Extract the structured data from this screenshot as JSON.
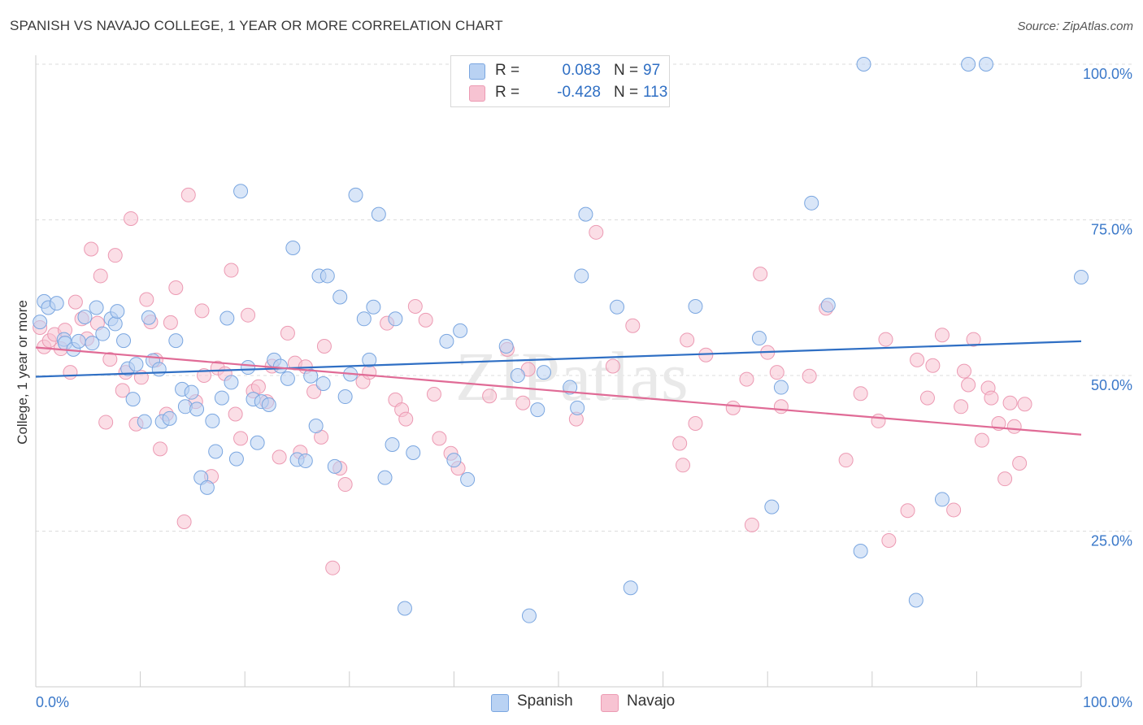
{
  "title": "SPANISH VS NAVAJO COLLEGE, 1 YEAR OR MORE CORRELATION CHART",
  "source": "Source: ZipAtlas.com",
  "watermark": "ZIPatlas",
  "legend": {
    "rows": [
      {
        "r_label": "R =",
        "r_value": "0.083",
        "n_label": "N =",
        "n_value": "97"
      },
      {
        "r_label": "R =",
        "r_value": "-0.428",
        "n_label": "N =",
        "n_value": "113"
      }
    ]
  },
  "bottom_legend": [
    "Spanish",
    "Navajo"
  ],
  "colors": {
    "spanish_fill": "#b9d2f3",
    "spanish_stroke": "#7aa6e0",
    "spanish_line": "#2f6fc4",
    "navajo_fill": "#f7c3d2",
    "navajo_stroke": "#ec9ab3",
    "navajo_line": "#e06b96",
    "axis_text": "#3a78c9",
    "grid": "#dddddd"
  },
  "chart_data": {
    "type": "scatter",
    "xlabel": "",
    "ylabel": "College, 1 year or more",
    "x_tick_labels": [
      "0.0%",
      "100.0%"
    ],
    "y_tick_labels": [
      "25.0%",
      "50.0%",
      "75.0%",
      "100.0%"
    ],
    "y_ticks": [
      25,
      50,
      75,
      100
    ],
    "xlim": [
      0,
      100
    ],
    "ylim": [
      0,
      100
    ],
    "grid": true,
    "legend_position": "top-center",
    "series": [
      {
        "name": "Spanish",
        "R": 0.083,
        "N": 97,
        "trend": {
          "x": [
            0,
            100
          ],
          "y": [
            49.8,
            55.5
          ]
        },
        "points": [
          [
            0.4,
            58.6
          ],
          [
            0.8,
            61.9
          ],
          [
            1.2,
            60.9
          ],
          [
            2.0,
            61.6
          ],
          [
            2.7,
            55.8
          ],
          [
            2.8,
            55.2
          ],
          [
            3.6,
            54.2
          ],
          [
            4.1,
            55.5
          ],
          [
            4.7,
            59.4
          ],
          [
            5.4,
            55.2
          ],
          [
            5.8,
            60.9
          ],
          [
            6.4,
            56.7
          ],
          [
            7.2,
            59.1
          ],
          [
            7.6,
            58.3
          ],
          [
            7.8,
            60.3
          ],
          [
            8.4,
            55.6
          ],
          [
            8.8,
            51.1
          ],
          [
            9.3,
            46.2
          ],
          [
            9.6,
            51.8
          ],
          [
            10.4,
            42.6
          ],
          [
            10.8,
            59.3
          ],
          [
            11.2,
            52.4
          ],
          [
            11.8,
            51.0
          ],
          [
            12.1,
            42.6
          ],
          [
            12.8,
            43.1
          ],
          [
            13.4,
            55.6
          ],
          [
            14.0,
            47.8
          ],
          [
            14.3,
            45.0
          ],
          [
            14.9,
            47.3
          ],
          [
            15.4,
            44.6
          ],
          [
            15.8,
            33.6
          ],
          [
            16.4,
            32.0
          ],
          [
            16.9,
            42.7
          ],
          [
            17.2,
            37.8
          ],
          [
            17.8,
            46.4
          ],
          [
            18.3,
            59.2
          ],
          [
            18.7,
            48.9
          ],
          [
            19.2,
            36.6
          ],
          [
            19.6,
            79.6
          ],
          [
            20.3,
            51.3
          ],
          [
            20.8,
            46.2
          ],
          [
            21.2,
            39.2
          ],
          [
            21.6,
            45.8
          ],
          [
            22.3,
            45.3
          ],
          [
            22.8,
            52.5
          ],
          [
            23.4,
            51.5
          ],
          [
            24.1,
            49.5
          ],
          [
            24.6,
            70.5
          ],
          [
            25.0,
            36.5
          ],
          [
            25.8,
            36.3
          ],
          [
            26.3,
            49.9
          ],
          [
            26.8,
            41.9
          ],
          [
            27.1,
            66.0
          ],
          [
            27.5,
            48.7
          ],
          [
            27.9,
            66.0
          ],
          [
            28.6,
            35.4
          ],
          [
            29.1,
            62.6
          ],
          [
            29.6,
            46.6
          ],
          [
            30.1,
            50.2
          ],
          [
            30.6,
            79.0
          ],
          [
            31.4,
            59.1
          ],
          [
            31.9,
            52.5
          ],
          [
            32.3,
            61.0
          ],
          [
            32.8,
            75.9
          ],
          [
            33.4,
            33.6
          ],
          [
            34.1,
            38.9
          ],
          [
            34.4,
            59.1
          ],
          [
            35.3,
            12.6
          ],
          [
            36.1,
            37.6
          ],
          [
            39.3,
            55.5
          ],
          [
            40.0,
            36.4
          ],
          [
            40.6,
            57.2
          ],
          [
            41.3,
            33.3
          ],
          [
            45.0,
            54.7
          ],
          [
            46.1,
            50.0
          ],
          [
            47.2,
            11.4
          ],
          [
            48.0,
            44.5
          ],
          [
            48.6,
            50.5
          ],
          [
            51.1,
            48.1
          ],
          [
            51.8,
            44.8
          ],
          [
            52.2,
            66.0
          ],
          [
            52.6,
            75.9
          ],
          [
            55.6,
            61.0
          ],
          [
            56.9,
            15.9
          ],
          [
            63.1,
            61.1
          ],
          [
            69.2,
            56.0
          ],
          [
            70.4,
            28.9
          ],
          [
            71.3,
            48.1
          ],
          [
            74.2,
            77.7
          ],
          [
            75.8,
            61.3
          ],
          [
            78.9,
            21.8
          ],
          [
            79.2,
            100.0
          ],
          [
            84.2,
            13.9
          ],
          [
            86.7,
            30.1
          ],
          [
            89.2,
            100.0
          ],
          [
            90.9,
            100.0
          ],
          [
            100.0,
            65.8
          ]
        ]
      },
      {
        "name": "Navajo",
        "R": -0.428,
        "N": 113,
        "trend": {
          "x": [
            0,
            100
          ],
          "y": [
            54.5,
            40.5
          ]
        },
        "points": [
          [
            0.4,
            57.7
          ],
          [
            0.8,
            54.6
          ],
          [
            1.3,
            55.6
          ],
          [
            1.8,
            56.6
          ],
          [
            2.4,
            54.3
          ],
          [
            2.8,
            57.3
          ],
          [
            3.3,
            50.5
          ],
          [
            3.8,
            61.8
          ],
          [
            4.4,
            59.1
          ],
          [
            4.9,
            55.9
          ],
          [
            5.3,
            70.3
          ],
          [
            5.9,
            58.4
          ],
          [
            6.2,
            66.0
          ],
          [
            6.7,
            42.5
          ],
          [
            7.1,
            52.6
          ],
          [
            7.6,
            69.3
          ],
          [
            8.3,
            47.6
          ],
          [
            8.6,
            50.5
          ],
          [
            9.1,
            75.2
          ],
          [
            9.6,
            42.2
          ],
          [
            10.1,
            49.7
          ],
          [
            10.6,
            62.2
          ],
          [
            11.0,
            58.6
          ],
          [
            11.5,
            52.5
          ],
          [
            11.9,
            38.2
          ],
          [
            12.5,
            43.8
          ],
          [
            12.9,
            58.5
          ],
          [
            13.4,
            64.1
          ],
          [
            14.2,
            26.5
          ],
          [
            14.6,
            79.0
          ],
          [
            15.3,
            45.8
          ],
          [
            15.9,
            60.4
          ],
          [
            16.1,
            50.0
          ],
          [
            16.8,
            33.8
          ],
          [
            17.4,
            51.2
          ],
          [
            18.1,
            50.3
          ],
          [
            18.7,
            66.9
          ],
          [
            19.1,
            43.8
          ],
          [
            19.6,
            39.9
          ],
          [
            20.3,
            59.7
          ],
          [
            20.8,
            47.5
          ],
          [
            21.3,
            48.2
          ],
          [
            22.1,
            45.8
          ],
          [
            22.6,
            51.5
          ],
          [
            23.3,
            36.9
          ],
          [
            24.1,
            56.8
          ],
          [
            24.8,
            52.0
          ],
          [
            25.3,
            37.7
          ],
          [
            25.8,
            51.4
          ],
          [
            26.6,
            47.4
          ],
          [
            27.3,
            40.1
          ],
          [
            27.6,
            54.7
          ],
          [
            28.4,
            19.1
          ],
          [
            29.1,
            35.1
          ],
          [
            29.6,
            32.5
          ],
          [
            31.3,
            49.0
          ],
          [
            31.9,
            50.5
          ],
          [
            33.6,
            58.4
          ],
          [
            34.4,
            46.1
          ],
          [
            35.0,
            44.5
          ],
          [
            35.4,
            43.0
          ],
          [
            36.3,
            61.1
          ],
          [
            37.3,
            58.9
          ],
          [
            38.1,
            47.0
          ],
          [
            38.6,
            39.9
          ],
          [
            39.7,
            37.5
          ],
          [
            40.4,
            35.1
          ],
          [
            43.4,
            46.7
          ],
          [
            45.1,
            54.2
          ],
          [
            46.6,
            45.6
          ],
          [
            47.1,
            51.0
          ],
          [
            51.7,
            43.0
          ],
          [
            53.6,
            73.0
          ],
          [
            55.2,
            51.5
          ],
          [
            57.1,
            58.0
          ],
          [
            61.6,
            39.1
          ],
          [
            61.9,
            35.6
          ],
          [
            62.3,
            55.7
          ],
          [
            63.1,
            42.3
          ],
          [
            64.1,
            53.3
          ],
          [
            66.7,
            44.8
          ],
          [
            68.0,
            49.4
          ],
          [
            68.5,
            26.0
          ],
          [
            69.3,
            66.3
          ],
          [
            70.0,
            53.7
          ],
          [
            70.9,
            50.5
          ],
          [
            71.3,
            45.0
          ],
          [
            74.0,
            49.9
          ],
          [
            75.6,
            60.8
          ],
          [
            77.5,
            36.4
          ],
          [
            78.9,
            47.1
          ],
          [
            80.6,
            42.7
          ],
          [
            81.3,
            55.8
          ],
          [
            81.6,
            23.5
          ],
          [
            83.4,
            28.3
          ],
          [
            84.3,
            52.5
          ],
          [
            85.3,
            46.4
          ],
          [
            85.8,
            51.6
          ],
          [
            86.7,
            56.5
          ],
          [
            87.8,
            28.4
          ],
          [
            88.5,
            45.0
          ],
          [
            88.8,
            50.7
          ],
          [
            89.2,
            48.5
          ],
          [
            89.7,
            55.8
          ],
          [
            90.5,
            39.6
          ],
          [
            91.1,
            48.0
          ],
          [
            91.4,
            46.4
          ],
          [
            92.1,
            42.3
          ],
          [
            92.7,
            33.4
          ],
          [
            93.2,
            45.6
          ],
          [
            93.6,
            41.8
          ],
          [
            94.1,
            35.9
          ],
          [
            94.6,
            45.4
          ]
        ]
      }
    ]
  }
}
